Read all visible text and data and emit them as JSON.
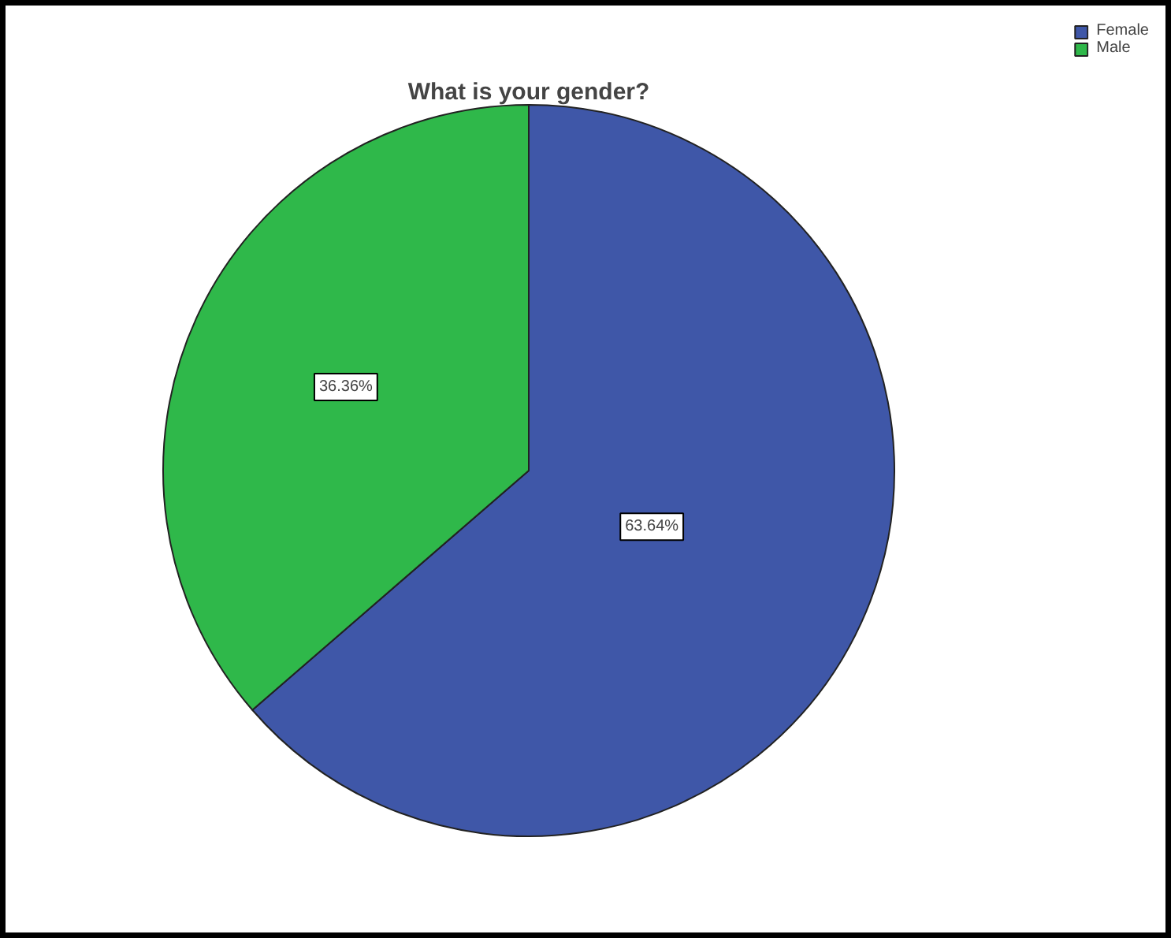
{
  "chart_data": {
    "type": "pie",
    "title": "What is your gender?",
    "categories": [
      "Female",
      "Male"
    ],
    "values": [
      63.64,
      36.36
    ],
    "colors": [
      "#3f57a8",
      "#2fb84a"
    ],
    "value_labels": [
      "63.64%",
      "36.36%"
    ],
    "legend": "top right"
  }
}
